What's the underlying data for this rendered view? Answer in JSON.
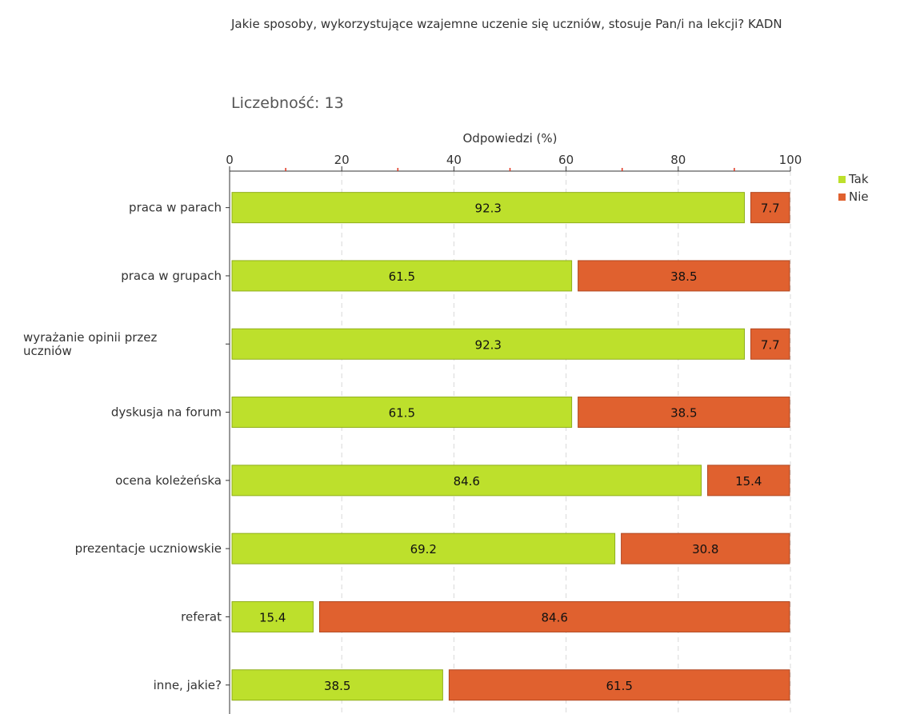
{
  "chart_data": {
    "type": "bar",
    "orientation": "horizontal",
    "stacked": true,
    "title": "Jakie sposoby, wykorzystujące wzajemne uczenie się uczniów, stosuje Pan/i na lekcji? KADN",
    "count_label": "Liczebność: 13",
    "xlabel": "Odpowiedzi (%)",
    "xlim": [
      0,
      100
    ],
    "xticks": [
      0,
      20,
      40,
      60,
      80,
      100
    ],
    "grid": true,
    "legend_position": "top-right",
    "categories": [
      "praca w parach",
      "praca w grupach",
      "wyrażanie opinii przez uczniów",
      "dyskusja na forum",
      "ocena koleżeńska",
      "prezentacje uczniowskie",
      "referat",
      "inne, jakie?"
    ],
    "series": [
      {
        "name": "Tak",
        "color": "#bde02c",
        "border": "#8fae1a",
        "values": [
          92.3,
          61.5,
          92.3,
          61.5,
          84.6,
          69.2,
          15.4,
          38.5
        ]
      },
      {
        "name": "Nie",
        "color": "#e0612f",
        "border": "#b04720",
        "values": [
          7.7,
          38.5,
          7.7,
          38.5,
          15.4,
          30.8,
          84.6,
          61.5
        ]
      }
    ]
  }
}
